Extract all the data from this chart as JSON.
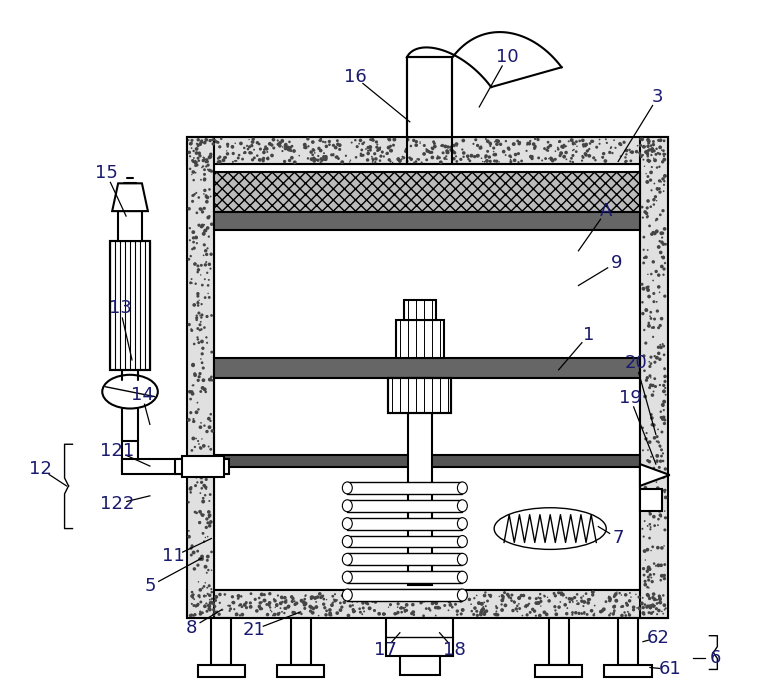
{
  "bg_color": "#ffffff",
  "line_color": "#000000",
  "label_color": "#1a1a6e",
  "fig_width": 7.71,
  "fig_height": 7.0
}
